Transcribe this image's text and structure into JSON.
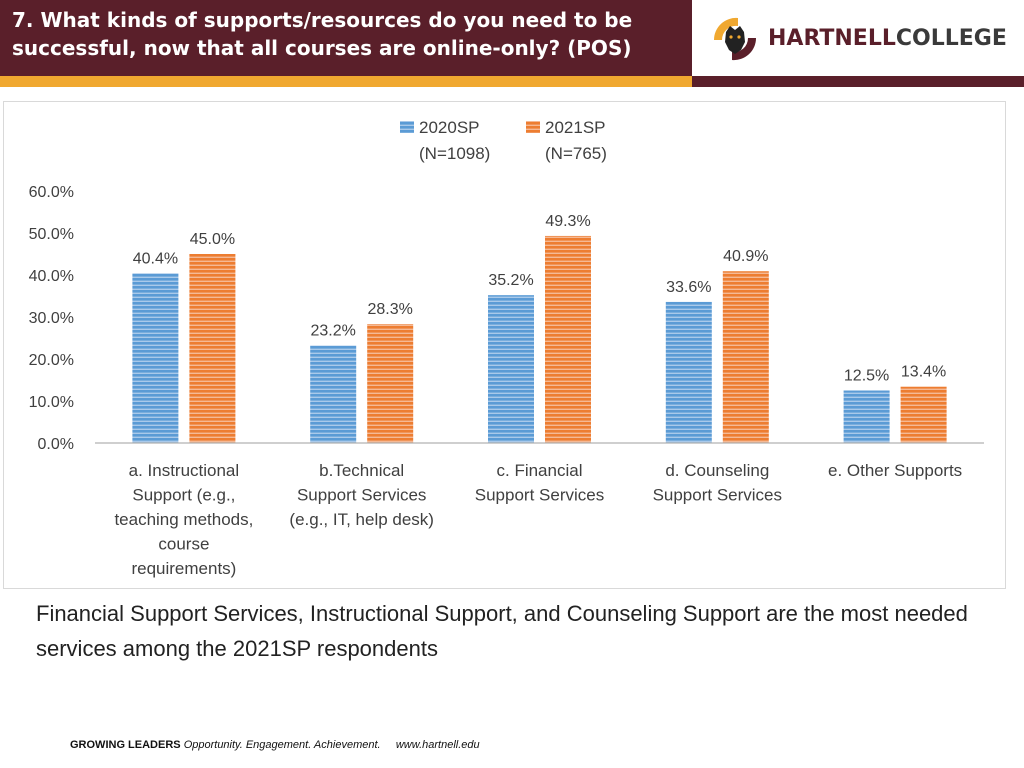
{
  "header": {
    "title": "7. What kinds of supports/resources do you need to be successful, now that all courses are online-only? (POS)",
    "brand_primary": "HARTNELL",
    "brand_secondary": "COLLEGE",
    "colors": {
      "band": "#5a1f2a",
      "accent": "#f0a830"
    },
    "logo_icon": "panther-shield-icon"
  },
  "chart_data": {
    "type": "bar",
    "categories": [
      [
        "a. Instructional",
        "Support (e.g.,",
        "teaching methods,",
        "course",
        "requirements)"
      ],
      [
        "b.Technical",
        "Support Services",
        "(e.g., IT, help desk)"
      ],
      [
        "c. Financial",
        "Support Services"
      ],
      [
        "d. Counseling",
        "Support Services"
      ],
      [
        "e. Other Supports"
      ]
    ],
    "series": [
      {
        "name": "2020SP",
        "legend_sub": "(N=1098)",
        "color": "#5b9bd5",
        "values": [
          40.4,
          23.2,
          35.2,
          33.6,
          12.5
        ]
      },
      {
        "name": "2021SP",
        "legend_sub": "(N=765)",
        "color": "#ed7d31",
        "values": [
          45.0,
          28.3,
          49.3,
          40.9,
          13.4
        ]
      }
    ],
    "value_format": "percent_1dp",
    "ylim": [
      0,
      60
    ],
    "yticks": [
      0,
      10,
      20,
      30,
      40,
      50,
      60
    ],
    "ytick_labels": [
      "0.0%",
      "10.0%",
      "20.0%",
      "30.0%",
      "40.0%",
      "50.0%",
      "60.0%"
    ],
    "legend_position": "top-center",
    "grid": false,
    "title": "",
    "xlabel": "",
    "ylabel": ""
  },
  "caption": "Financial Support Services, Instructional Support, and Counseling Support are the most needed services among the 2021SP respondents",
  "footer": {
    "bold": "GROWING LEADERS",
    "tagline": "Opportunity. Engagement. Achievement.",
    "url": "www.hartnell.edu"
  }
}
